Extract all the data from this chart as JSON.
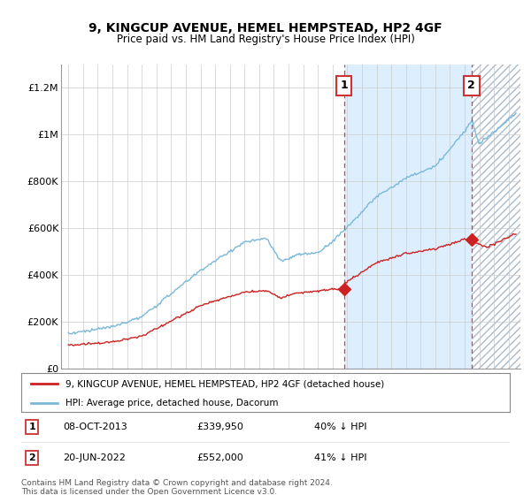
{
  "title": "9, KINGCUP AVENUE, HEMEL HEMPSTEAD, HP2 4GF",
  "subtitle": "Price paid vs. HM Land Registry's House Price Index (HPI)",
  "ylim": [
    0,
    1300000
  ],
  "yticks": [
    0,
    200000,
    400000,
    600000,
    800000,
    1000000,
    1200000
  ],
  "ytick_labels": [
    "£0",
    "£200K",
    "£400K",
    "£600K",
    "£800K",
    "£1M",
    "£1.2M"
  ],
  "legend_line1": "9, KINGCUP AVENUE, HEMEL HEMPSTEAD, HP2 4GF (detached house)",
  "legend_line2": "HPI: Average price, detached house, Dacorum",
  "annotation1_date": "08-OCT-2013",
  "annotation1_price": "£339,950",
  "annotation1_note": "40% ↓ HPI",
  "annotation2_date": "20-JUN-2022",
  "annotation2_price": "£552,000",
  "annotation2_note": "41% ↓ HPI",
  "footer": "Contains HM Land Registry data © Crown copyright and database right 2024.\nThis data is licensed under the Open Government Licence v3.0.",
  "hpi_color": "#7ab8d9",
  "price_color": "#cc2222",
  "vline_color": "#cc4444",
  "shade_color": "#ddeeff",
  "bg_color": "#f0f4f8",
  "point1_x": 2013.77,
  "point1_y": 339950,
  "point2_x": 2022.47,
  "point2_y": 552000,
  "xmin": 1994.5,
  "xmax": 2025.8
}
